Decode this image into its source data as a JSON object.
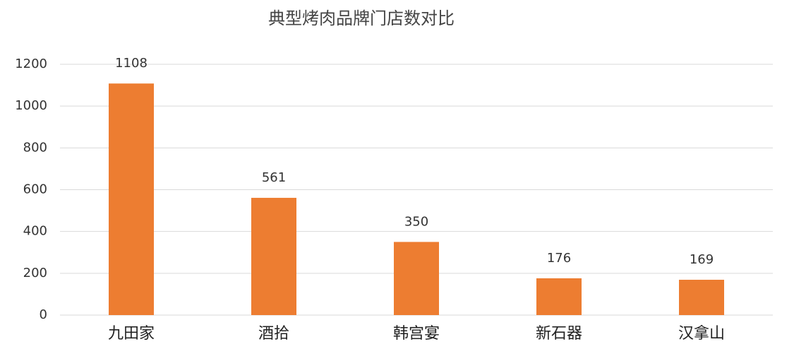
{
  "chart_data": {
    "type": "bar",
    "title": "典型烤肉品牌门店数对比",
    "categories": [
      "九田家",
      "酒拾",
      "韩宫宴",
      "新石器",
      "汉拿山"
    ],
    "values": [
      1108,
      561,
      350,
      176,
      169
    ],
    "color": "#ED7D31",
    "ylim": [
      0,
      1200
    ],
    "yticks": [
      0,
      200,
      400,
      600,
      800,
      1000,
      1200
    ],
    "grid": true
  }
}
